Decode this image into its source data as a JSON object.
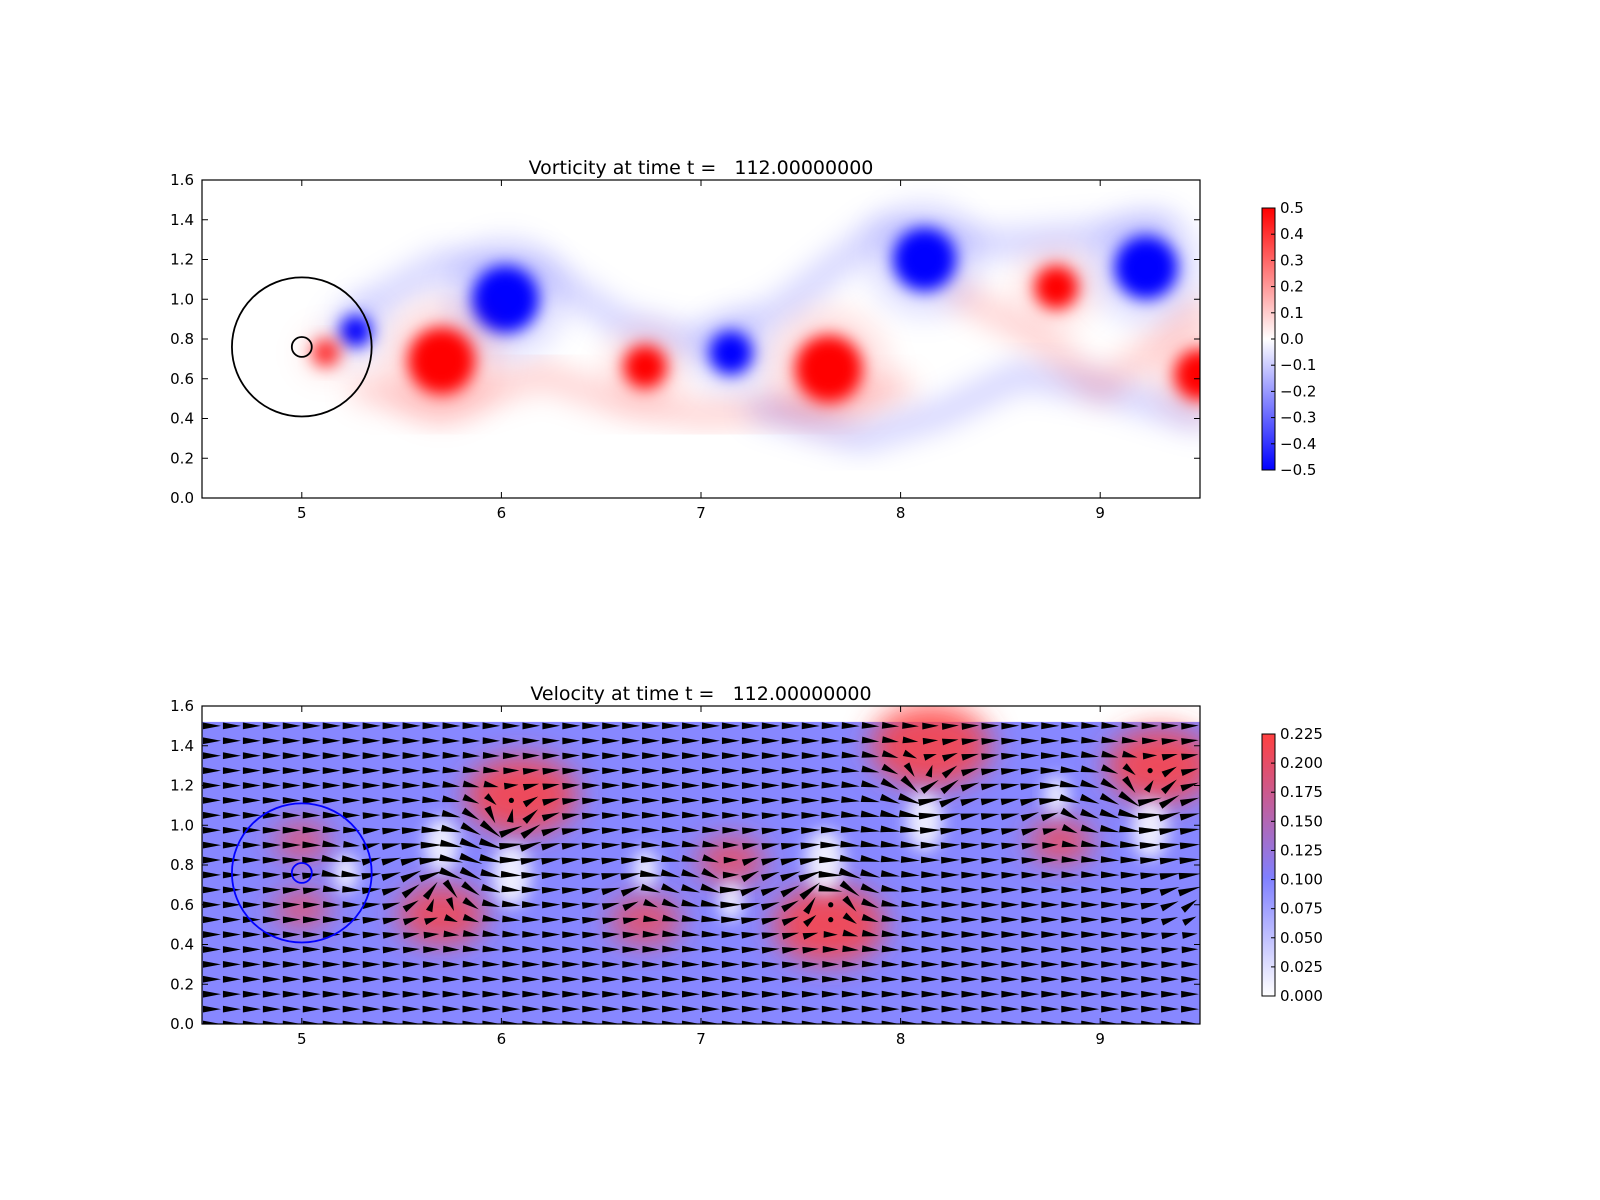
{
  "chart_data": [
    {
      "type": "heatmap",
      "title": "Vorticity at time t =   112.00000000",
      "xlim": [
        4.5,
        9.5
      ],
      "ylim": [
        0.0,
        1.6
      ],
      "xticks": [
        5,
        6,
        7,
        8,
        9
      ],
      "yticks": [
        0.0,
        0.2,
        0.4,
        0.6,
        0.8,
        1.0,
        1.2,
        1.4,
        1.6
      ],
      "colorbar": {
        "min": -0.5,
        "max": 0.5,
        "ticks": [
          0.5,
          0.4,
          0.3,
          0.2,
          0.1,
          0.0,
          -0.1,
          -0.2,
          -0.3,
          -0.4,
          -0.5
        ],
        "tick_labels": [
          "0.5",
          "0.4",
          "0.3",
          "0.2",
          "0.1",
          "0.0",
          "−0.1",
          "−0.2",
          "−0.3",
          "−0.4",
          "−0.5"
        ],
        "colormap": "bwr",
        "colors": {
          "low": "#0000ff",
          "mid": "#ffffff",
          "high": "#ff0000"
        }
      },
      "vortices": [
        {
          "x": 6.02,
          "y": 1.0,
          "r": 0.17,
          "value": -0.5
        },
        {
          "x": 5.7,
          "y": 0.69,
          "r": 0.17,
          "value": 0.5
        },
        {
          "x": 6.72,
          "y": 0.66,
          "r": 0.11,
          "value": 0.5
        },
        {
          "x": 7.15,
          "y": 0.73,
          "r": 0.11,
          "value": -0.5
        },
        {
          "x": 7.64,
          "y": 0.65,
          "r": 0.17,
          "value": 0.5
        },
        {
          "x": 8.12,
          "y": 1.2,
          "r": 0.16,
          "value": -0.5
        },
        {
          "x": 8.78,
          "y": 1.06,
          "r": 0.11,
          "value": 0.5
        },
        {
          "x": 9.23,
          "y": 1.16,
          "r": 0.16,
          "value": -0.5
        },
        {
          "x": 9.5,
          "y": 0.62,
          "r": 0.13,
          "value": 0.5
        },
        {
          "x": 5.27,
          "y": 0.84,
          "r": 0.08,
          "value": -0.5
        },
        {
          "x": 5.12,
          "y": 0.73,
          "r": 0.07,
          "value": 0.4
        }
      ],
      "circles": [
        {
          "cx": 5.0,
          "cy": 0.76,
          "r": 0.35,
          "color": "#000000"
        },
        {
          "cx": 5.0,
          "cy": 0.76,
          "r": 0.05,
          "color": "#000000"
        }
      ]
    },
    {
      "type": "heatmap",
      "title": "Velocity at time t =   112.00000000",
      "xlim": [
        4.5,
        9.5
      ],
      "ylim": [
        0.0,
        1.6
      ],
      "xticks": [
        5,
        6,
        7,
        8,
        9
      ],
      "yticks": [
        0.0,
        0.2,
        0.4,
        0.6,
        0.8,
        1.0,
        1.2,
        1.4,
        1.6
      ],
      "field_ylim": [
        0.0,
        1.52
      ],
      "background_speed": 0.105,
      "colorbar": {
        "min": 0.0,
        "max": 0.225,
        "ticks": [
          0.225,
          0.2,
          0.175,
          0.15,
          0.125,
          0.1,
          0.075,
          0.05,
          0.025,
          0.0
        ],
        "tick_labels": [
          "0.225",
          "0.200",
          "0.175",
          "0.150",
          "0.125",
          "0.100",
          "0.075",
          "0.050",
          "0.025",
          "0.000"
        ],
        "colors": {
          "low": "#ffffff",
          "mid": "#8080ff",
          "high": "#ff4040"
        }
      },
      "fast_regions": [
        {
          "x": 6.1,
          "y": 1.15,
          "r": 0.28,
          "speed": 0.225
        },
        {
          "x": 5.7,
          "y": 0.55,
          "r": 0.22,
          "speed": 0.21
        },
        {
          "x": 6.72,
          "y": 0.52,
          "r": 0.18,
          "speed": 0.19
        },
        {
          "x": 7.15,
          "y": 0.82,
          "r": 0.17,
          "speed": 0.19
        },
        {
          "x": 7.64,
          "y": 0.5,
          "r": 0.28,
          "speed": 0.225
        },
        {
          "x": 8.15,
          "y": 1.4,
          "r": 0.3,
          "speed": 0.225
        },
        {
          "x": 8.8,
          "y": 0.92,
          "r": 0.16,
          "speed": 0.2
        },
        {
          "x": 9.3,
          "y": 1.3,
          "r": 0.27,
          "speed": 0.225
        },
        {
          "x": 5.0,
          "y": 0.92,
          "r": 0.14,
          "speed": 0.18
        },
        {
          "x": 5.0,
          "y": 0.58,
          "r": 0.14,
          "speed": 0.18
        }
      ],
      "slow_regions": [
        {
          "x": 5.7,
          "y": 0.9,
          "r": 0.14,
          "speed": 0.0
        },
        {
          "x": 6.05,
          "y": 0.75,
          "r": 0.16,
          "speed": 0.0
        },
        {
          "x": 6.72,
          "y": 0.78,
          "r": 0.1,
          "speed": 0.0
        },
        {
          "x": 7.15,
          "y": 0.62,
          "r": 0.1,
          "speed": 0.0
        },
        {
          "x": 7.62,
          "y": 0.82,
          "r": 0.16,
          "speed": 0.0
        },
        {
          "x": 8.12,
          "y": 1.02,
          "r": 0.15,
          "speed": 0.0
        },
        {
          "x": 8.78,
          "y": 1.15,
          "r": 0.1,
          "speed": 0.0
        },
        {
          "x": 9.25,
          "y": 0.98,
          "r": 0.15,
          "speed": 0.0
        },
        {
          "x": 5.22,
          "y": 0.76,
          "r": 0.1,
          "speed": 0.0
        }
      ],
      "quiver": {
        "nx": 50,
        "ny": 20,
        "x0": 4.5,
        "x1": 9.5,
        "y0": 0.0,
        "y1": 1.5,
        "color": "#000000"
      },
      "circles": [
        {
          "cx": 5.0,
          "cy": 0.76,
          "r": 0.35,
          "color": "#0000ff"
        },
        {
          "cx": 5.0,
          "cy": 0.76,
          "r": 0.05,
          "color": "#0000ff"
        }
      ]
    }
  ]
}
